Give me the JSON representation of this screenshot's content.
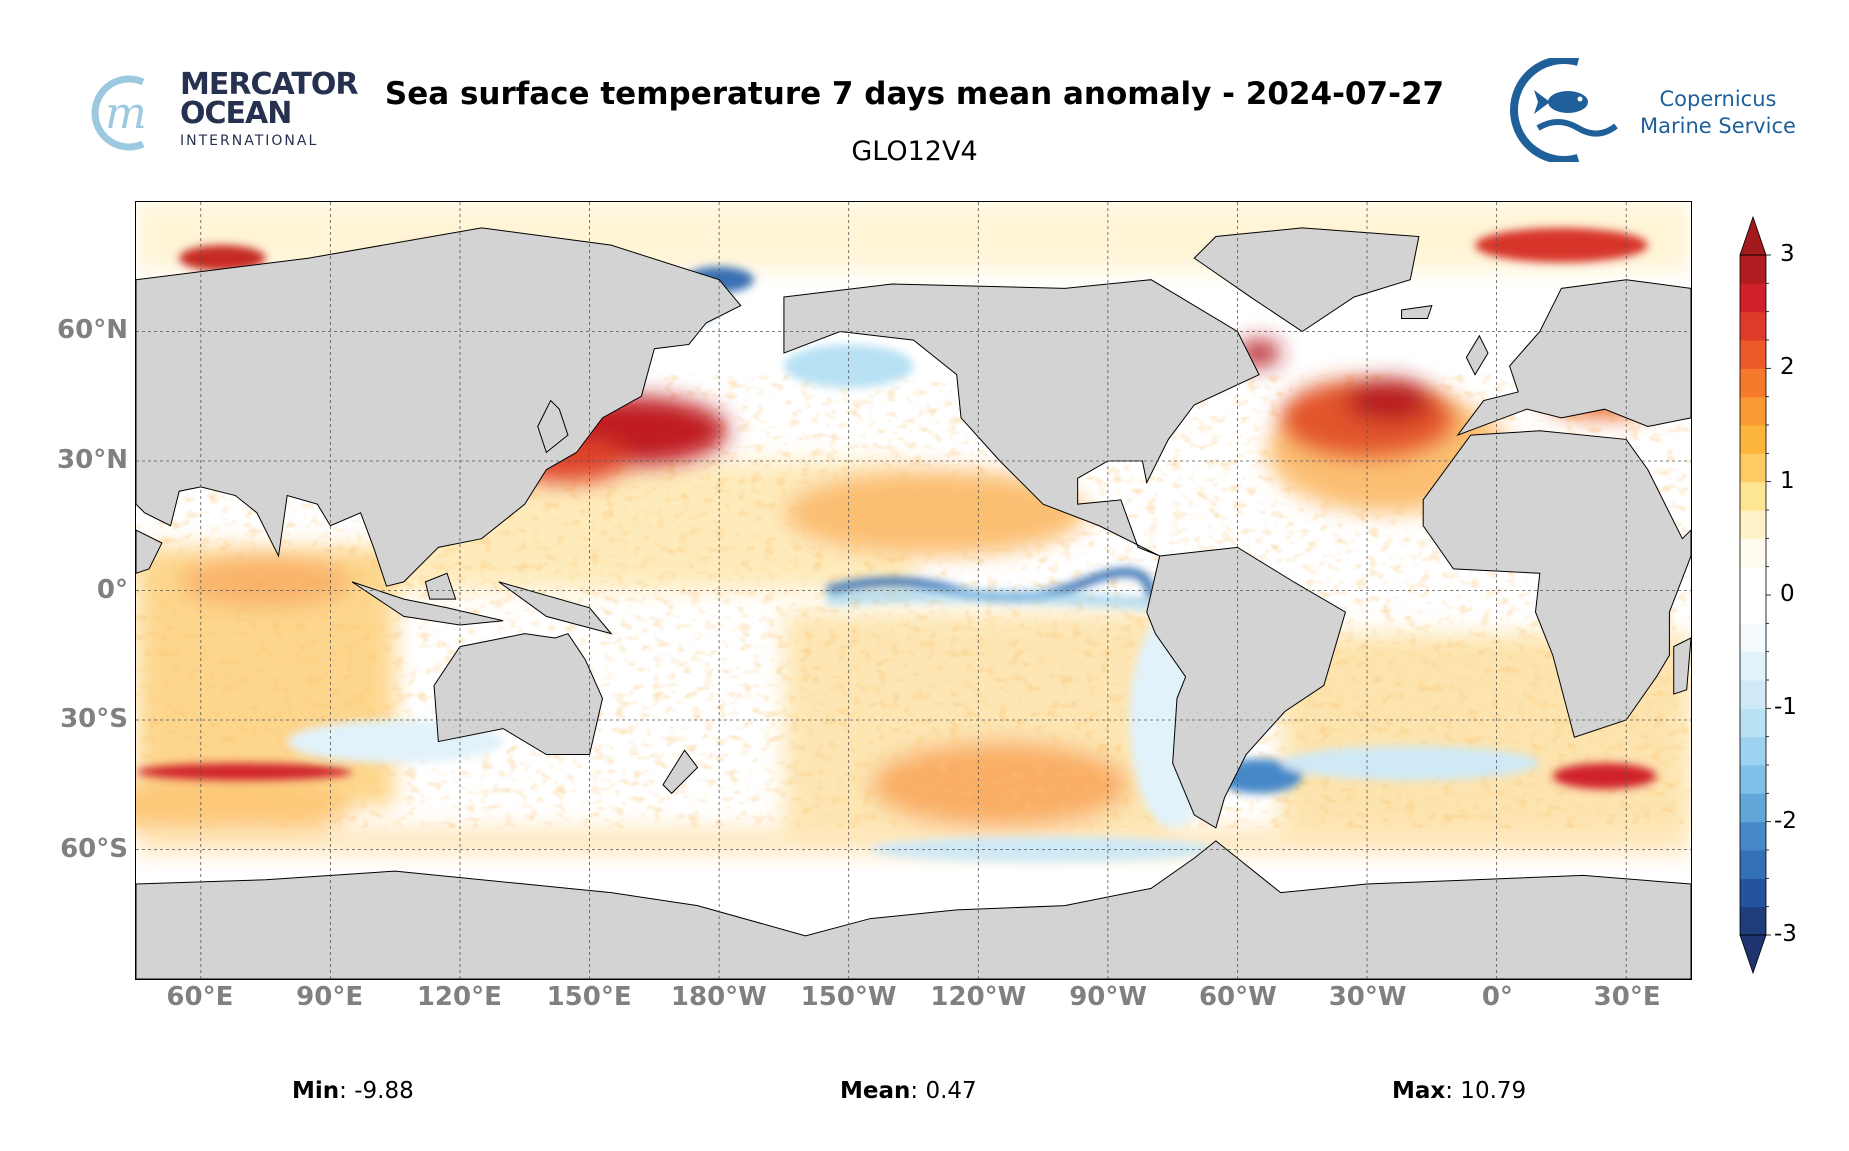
{
  "header": {
    "title": "Sea surface temperature 7 days mean anomaly - 2024-07-27",
    "subtitle": "GLO12V4"
  },
  "logos": {
    "mercator": {
      "line1": "MERCATOR",
      "line2": "OCEAN",
      "line3": "INTERNATIONAL",
      "color": "#26304f",
      "accent": "#9cc9e0"
    },
    "copernicus": {
      "line1": "Copernicus",
      "line2": "Marine Service",
      "color": "#1f5f9a"
    }
  },
  "stats": {
    "min_label": "Min",
    "min_value": ": -9.88",
    "mean_label": "Mean",
    "mean_value": ": 0.47",
    "max_label": "Max",
    "max_value": ": 10.79"
  },
  "chart_data": {
    "type": "heatmap",
    "title": "Sea surface temperature 7 days mean anomaly - 2024-07-27",
    "subtitle": "GLO12V4",
    "projection": "equirectangular",
    "lon_range": [
      45,
      405
    ],
    "lat_range": [
      -90,
      90
    ],
    "grid": true,
    "xticks": [
      {
        "lon": 60,
        "label": "60°E"
      },
      {
        "lon": 90,
        "label": "90°E"
      },
      {
        "lon": 120,
        "label": "120°E"
      },
      {
        "lon": 150,
        "label": "150°E"
      },
      {
        "lon": 180,
        "label": "180°W"
      },
      {
        "lon": 210,
        "label": "150°W"
      },
      {
        "lon": 240,
        "label": "120°W"
      },
      {
        "lon": 270,
        "label": "90°W"
      },
      {
        "lon": 300,
        "label": "60°W"
      },
      {
        "lon": 330,
        "label": "30°W"
      },
      {
        "lon": 360,
        "label": "0°"
      },
      {
        "lon": 390,
        "label": "30°E"
      }
    ],
    "yticks": [
      {
        "lat": 60,
        "label": "60°N"
      },
      {
        "lat": 30,
        "label": "30°N"
      },
      {
        "lat": 0,
        "label": "0°"
      },
      {
        "lat": -30,
        "label": "30°S"
      },
      {
        "lat": -60,
        "label": "60°S"
      }
    ],
    "colorbar": {
      "min": -3,
      "max": 3,
      "step": 0.25,
      "extend": "both",
      "ticks": [
        {
          "v": 3,
          "label": "3"
        },
        {
          "v": 2,
          "label": "2"
        },
        {
          "v": 1,
          "label": "1"
        },
        {
          "v": 0,
          "label": "0"
        },
        {
          "v": -1,
          "label": "-1"
        },
        {
          "v": -2,
          "label": "-2"
        },
        {
          "v": -3,
          "label": "-3"
        }
      ],
      "colors": [
        "#1f3d7a",
        "#25549e",
        "#3470b5",
        "#4689c8",
        "#62a7da",
        "#7fc0e8",
        "#9dd3f1",
        "#b8e1f4",
        "#cfe9f6",
        "#e2f2fa",
        "#f4fafd",
        "#ffffff",
        "#ffffff",
        "#fffbef",
        "#fff2c9",
        "#fee591",
        "#fdcb62",
        "#fdb43c",
        "#fa9932",
        "#f57a2c",
        "#ec5a2a",
        "#e03a2a",
        "#d0202a",
        "#b01c20"
      ],
      "under_color": "#1e3370",
      "over_color": "#a31a1d"
    },
    "land_color": "#d3d3d3",
    "stats": {
      "min": -9.88,
      "mean": 0.47,
      "max": 10.79
    }
  }
}
